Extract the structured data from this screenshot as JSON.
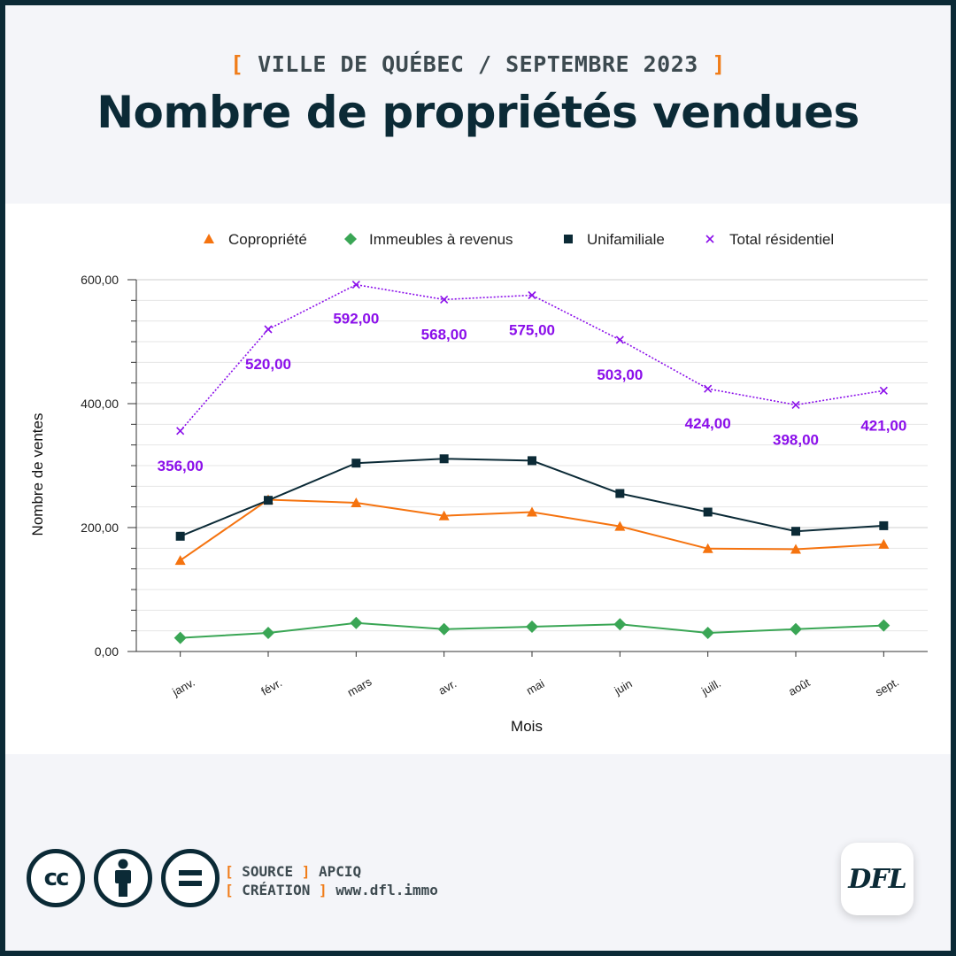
{
  "header": {
    "kicker_open": "[",
    "kicker": "VILLE DE QUÉBEC / SEPTEMBRE 2023",
    "kicker_close": "]",
    "title": "Nombre de propriétés vendues"
  },
  "colors": {
    "background": "#f4f5f9",
    "border": "#0b2a36",
    "accent": "#f07d1a",
    "title": "#0b2a36"
  },
  "chart_data": {
    "type": "line",
    "categories": [
      "janv.",
      "févr.",
      "mars",
      "avr.",
      "mai",
      "juin",
      "juill.",
      "août",
      "sept."
    ],
    "xlabel": "Mois",
    "ylabel": "Nombre de ventes",
    "ylim": [
      0,
      600
    ],
    "yticks": [
      "0,00",
      "200,00",
      "400,00",
      "600,00"
    ],
    "grid": true,
    "legend_position": "top",
    "series": [
      {
        "name": "Copropriété",
        "color": "#f5730f",
        "marker": "triangle",
        "line": "solid",
        "values": [
          147,
          245,
          240,
          219,
          225,
          202,
          166,
          165,
          173
        ]
      },
      {
        "name": "Immeubles à revenus",
        "color": "#3aa655",
        "marker": "diamond",
        "line": "solid",
        "values": [
          22,
          30,
          46,
          36,
          40,
          44,
          30,
          36,
          42
        ]
      },
      {
        "name": "Unifamiliale",
        "color": "#0b2a36",
        "marker": "square",
        "line": "solid",
        "values": [
          186,
          244,
          304,
          311,
          308,
          255,
          225,
          194,
          203
        ]
      },
      {
        "name": "Total résidentiel",
        "color": "#8b0fea",
        "marker": "x",
        "line": "dotted",
        "values": [
          356,
          520,
          592,
          568,
          575,
          503,
          424,
          398,
          421
        ],
        "data_labels": [
          "356,00",
          "520,00",
          "592,00",
          "568,00",
          "575,00",
          "503,00",
          "424,00",
          "398,00",
          "421,00"
        ]
      }
    ]
  },
  "footer": {
    "license_icons": [
      "cc-icon",
      "by-icon",
      "nd-icon"
    ],
    "cc_text": "cc",
    "source_label": "SOURCE",
    "source_value": "APCIQ",
    "creation_label": "CRÉATION",
    "creation_value": "www.dfl.immo",
    "open_bracket": "[",
    "close_bracket": "]",
    "logo_text": "DFL"
  }
}
